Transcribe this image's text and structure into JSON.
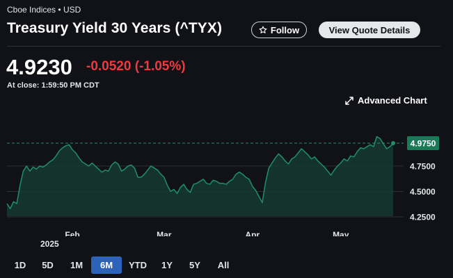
{
  "header": {
    "source": "Cboe Indices",
    "currency": "USD",
    "separator": "•",
    "title": "Treasury Yield 30 Years (^TYX)",
    "follow_label": "Follow",
    "view_quote_label": "View Quote Details"
  },
  "quote": {
    "price": "4.9230",
    "change": "-0.0520",
    "change_pct": "(-1.05%)",
    "close_label": "At close: 1:59:50 PM CDT"
  },
  "advanced_chart_label": "Advanced Chart",
  "colors": {
    "background": "#111217",
    "line": "#1f8f6a",
    "fill": "#163a31",
    "negative": "#f0393f",
    "current_badge": "#1a7a58",
    "active_range": "#2c62b8"
  },
  "icons": {
    "follow": "star-outline-icon",
    "advanced_chart": "expand-arrows-icon"
  },
  "chart_data": {
    "type": "area",
    "x_labels": [
      "Feb",
      "Mar",
      "Apr",
      "May"
    ],
    "x_year_label": "2025",
    "y_ticks": [
      "4.9750",
      "4.7500",
      "4.5000",
      "4.2500"
    ],
    "ylim": [
      4.15,
      5.1
    ],
    "current_value": 4.975,
    "current_label": "4.9750",
    "current_line": "dashed",
    "grid": true,
    "values": [
      4.38,
      4.33,
      4.4,
      4.38,
      4.56,
      4.7,
      4.75,
      4.7,
      4.74,
      4.72,
      4.75,
      4.74,
      4.76,
      4.79,
      4.81,
      4.85,
      4.9,
      4.93,
      4.95,
      4.96,
      4.91,
      4.88,
      4.83,
      4.79,
      4.77,
      4.75,
      4.78,
      4.75,
      4.72,
      4.69,
      4.71,
      4.7,
      4.76,
      4.79,
      4.77,
      4.7,
      4.72,
      4.75,
      4.76,
      4.73,
      4.64,
      4.64,
      4.67,
      4.71,
      4.75,
      4.73,
      4.71,
      4.67,
      4.64,
      4.56,
      4.5,
      4.52,
      4.48,
      4.54,
      4.57,
      4.52,
      4.49,
      4.57,
      4.58,
      4.6,
      4.62,
      4.58,
      4.57,
      4.61,
      4.6,
      4.58,
      4.58,
      4.57,
      4.6,
      4.62,
      4.67,
      4.69,
      4.67,
      4.64,
      4.62,
      4.55,
      4.51,
      4.45,
      4.39,
      4.59,
      4.73,
      4.78,
      4.83,
      4.87,
      4.84,
      4.8,
      4.77,
      4.82,
      4.84,
      4.88,
      4.92,
      4.89,
      4.86,
      4.82,
      4.84,
      4.8,
      4.77,
      4.74,
      4.7,
      4.66,
      4.71,
      4.75,
      4.78,
      4.82,
      4.8,
      4.85,
      4.84,
      4.89,
      4.93,
      4.92,
      4.94,
      4.96,
      4.94,
      5.04,
      5.02,
      4.97,
      4.92,
      4.94,
      4.975
    ],
    "x_label_index": [
      20,
      48,
      75,
      102
    ],
    "series_style": "line-with-fill"
  },
  "ranges": [
    {
      "label": "1D",
      "active": false
    },
    {
      "label": "5D",
      "active": false
    },
    {
      "label": "1M",
      "active": false
    },
    {
      "label": "6M",
      "active": true
    },
    {
      "label": "YTD",
      "active": false
    },
    {
      "label": "1Y",
      "active": false
    },
    {
      "label": "5Y",
      "active": false
    },
    {
      "label": "All",
      "active": false
    }
  ]
}
